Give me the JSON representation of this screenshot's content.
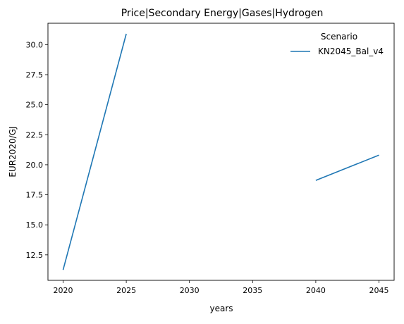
{
  "chart_data": {
    "type": "line",
    "title": "Price|Secondary Energy|Gases|Hydrogen",
    "xlabel": "years",
    "ylabel": "EUR2020/GJ",
    "xlim": [
      2018.8,
      2046.2
    ],
    "ylim": [
      10.38,
      31.78
    ],
    "x_ticks": [
      2020,
      2025,
      2030,
      2035,
      2040,
      2045
    ],
    "x_tick_labels": [
      "2020",
      "2025",
      "2030",
      "2035",
      "2040",
      "2045"
    ],
    "y_ticks": [
      12.5,
      15.0,
      17.5,
      20.0,
      22.5,
      25.0,
      27.5,
      30.0
    ],
    "y_tick_labels": [
      "12.5",
      "15.0",
      "17.5",
      "20.0",
      "22.5",
      "25.0",
      "27.5",
      "30.0"
    ],
    "grid": false,
    "legend": {
      "title": "Scenario",
      "position": "top-right"
    },
    "series": [
      {
        "name": "KN2045_Bal_v4",
        "color": "#1f77b4",
        "segments": [
          [
            [
              2020,
              11.25
            ],
            [
              2025,
              30.9
            ]
          ],
          [
            [
              2040,
              18.7
            ],
            [
              2045,
              20.8
            ]
          ]
        ]
      }
    ]
  }
}
